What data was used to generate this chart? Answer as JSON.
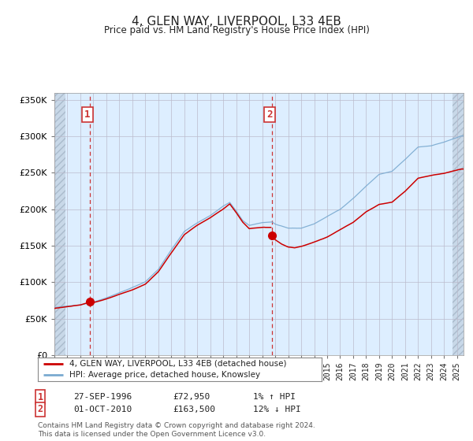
{
  "title": "4, GLEN WAY, LIVERPOOL, L33 4EB",
  "subtitle": "Price paid vs. HM Land Registry's House Price Index (HPI)",
  "legend_line1": "4, GLEN WAY, LIVERPOOL, L33 4EB (detached house)",
  "legend_line2": "HPI: Average price, detached house, Knowsley",
  "annotation1_date": "27-SEP-1996",
  "annotation1_price": "£72,950",
  "annotation1_hpi": "1% ↑ HPI",
  "annotation2_date": "01-OCT-2010",
  "annotation2_price": "£163,500",
  "annotation2_hpi": "12% ↓ HPI",
  "footer": "Contains HM Land Registry data © Crown copyright and database right 2024.\nThis data is licensed under the Open Government Licence v3.0.",
  "hpi_color": "#7aaad0",
  "price_color": "#cc0000",
  "marker_color": "#cc0000",
  "vline_color": "#cc3333",
  "background_color": "#ddeeff",
  "hatch_bg_color": "#c8d8e8",
  "grid_color": "#bbbbcc",
  "ylim": [
    0,
    360000
  ],
  "xlim_start": 1994.0,
  "xlim_end": 2025.5,
  "purchase1_x": 1996.75,
  "purchase1_y": 72950,
  "purchase2_x": 2010.75,
  "purchase2_y": 163500,
  "box_color": "#cc3333",
  "box_facecolor": "#ffffff",
  "hpi_key_points": [
    [
      1994.0,
      65000
    ],
    [
      1995.0,
      67000
    ],
    [
      1996.0,
      69000
    ],
    [
      1997.0,
      73000
    ],
    [
      1998.0,
      79000
    ],
    [
      1999.0,
      86000
    ],
    [
      2000.0,
      93000
    ],
    [
      2001.0,
      101000
    ],
    [
      2002.0,
      118000
    ],
    [
      2003.0,
      145000
    ],
    [
      2004.0,
      170000
    ],
    [
      2005.0,
      182000
    ],
    [
      2006.0,
      192000
    ],
    [
      2007.0,
      205000
    ],
    [
      2007.5,
      210000
    ],
    [
      2008.0,
      198000
    ],
    [
      2008.5,
      185000
    ],
    [
      2009.0,
      178000
    ],
    [
      2010.0,
      182000
    ],
    [
      2010.75,
      183000
    ],
    [
      2011.0,
      180000
    ],
    [
      2012.0,
      174000
    ],
    [
      2013.0,
      174000
    ],
    [
      2014.0,
      180000
    ],
    [
      2015.0,
      190000
    ],
    [
      2016.0,
      200000
    ],
    [
      2017.0,
      215000
    ],
    [
      2018.0,
      232000
    ],
    [
      2019.0,
      248000
    ],
    [
      2020.0,
      252000
    ],
    [
      2021.0,
      268000
    ],
    [
      2022.0,
      285000
    ],
    [
      2023.0,
      287000
    ],
    [
      2024.0,
      292000
    ],
    [
      2025.3,
      300000
    ]
  ],
  "price_key_points_pre": [
    [
      1994.0,
      64000
    ],
    [
      1995.0,
      66500
    ],
    [
      1996.0,
      68500
    ],
    [
      1996.75,
      72950
    ],
    [
      1997.0,
      72000
    ],
    [
      1998.0,
      77000
    ],
    [
      1999.0,
      83000
    ],
    [
      2000.0,
      89000
    ],
    [
      2001.0,
      97000
    ],
    [
      2002.0,
      114000
    ],
    [
      2003.0,
      140000
    ],
    [
      2004.0,
      165000
    ],
    [
      2005.0,
      178000
    ],
    [
      2006.0,
      188000
    ],
    [
      2007.0,
      200000
    ],
    [
      2007.5,
      207000
    ],
    [
      2008.0,
      195000
    ],
    [
      2008.5,
      182000
    ],
    [
      2009.0,
      173000
    ],
    [
      2010.0,
      175000
    ],
    [
      2010.74,
      175000
    ]
  ],
  "price_key_points_post": [
    [
      2010.75,
      163500
    ],
    [
      2011.0,
      158000
    ],
    [
      2011.5,
      152000
    ],
    [
      2012.0,
      148000
    ],
    [
      2012.5,
      147000
    ],
    [
      2013.0,
      149000
    ],
    [
      2014.0,
      155000
    ],
    [
      2015.0,
      162000
    ],
    [
      2016.0,
      172000
    ],
    [
      2017.0,
      182000
    ],
    [
      2018.0,
      197000
    ],
    [
      2019.0,
      207000
    ],
    [
      2020.0,
      210000
    ],
    [
      2021.0,
      225000
    ],
    [
      2022.0,
      243000
    ],
    [
      2023.0,
      247000
    ],
    [
      2024.0,
      250000
    ],
    [
      2025.3,
      256000
    ]
  ]
}
